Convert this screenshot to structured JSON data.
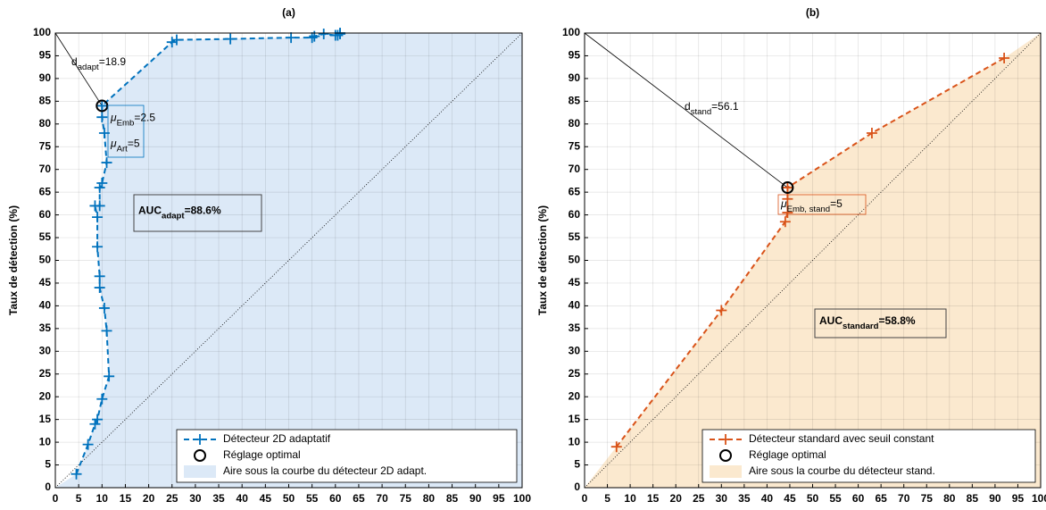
{
  "chart_data": [
    {
      "type": "line",
      "title": "(a)",
      "ylabel": "Taux de détection (%)",
      "xlim": [
        0,
        100
      ],
      "ylim": [
        0,
        100
      ],
      "xticks": [
        0,
        5,
        10,
        15,
        20,
        25,
        30,
        35,
        40,
        45,
        50,
        55,
        60,
        65,
        70,
        75,
        80,
        85,
        90,
        95,
        100
      ],
      "yticks": [
        0,
        5,
        10,
        15,
        20,
        25,
        30,
        35,
        40,
        45,
        50,
        55,
        60,
        65,
        70,
        75,
        80,
        85,
        90,
        95,
        100
      ],
      "grid": true,
      "legend": "lower right",
      "series": [
        {
          "name": "Détecteur 2D adaptatif",
          "color": "#0072bd",
          "x": [
            4.5,
            7,
            8.5,
            9,
            10,
            11.5,
            11,
            10.5,
            9.5,
            9.5,
            9,
            9,
            8.5,
            9.5,
            9.5,
            10,
            11,
            10.5,
            10,
            10,
            25,
            26,
            37.5,
            50.5,
            55,
            55.5,
            57.5,
            60,
            60.5,
            61,
            61
          ],
          "y": [
            3,
            9.5,
            14,
            15,
            19.5,
            24.5,
            34.5,
            39.5,
            44,
            46.5,
            53,
            59.5,
            62,
            62,
            66,
            67,
            71.5,
            78,
            81.5,
            84,
            98,
            98.5,
            98.7,
            99,
            99,
            99.3,
            99.8,
            99.5,
            99.5,
            99.8,
            100
          ]
        }
      ],
      "optimal": {
        "name": "Réglage optimal",
        "x": 10,
        "y": 84
      },
      "area": {
        "name": "Aire sous la courbe du détecteur 2D adapt.",
        "color": "#dce9f7"
      },
      "distance": {
        "label": "d",
        "sub": "adapt",
        "text": "=18.9"
      },
      "param_box": [
        {
          "label": "μ",
          "sub": "Emb",
          "text": "=2.5"
        },
        {
          "label": "μ",
          "sub": "Art",
          "text": "=5"
        }
      ],
      "auc": {
        "label": "AUC",
        "sub": "adapt",
        "text": "=88.6%"
      }
    },
    {
      "type": "line",
      "title": "(b)",
      "ylabel": "Taux de détection (%)",
      "xlim": [
        0,
        100
      ],
      "ylim": [
        0,
        100
      ],
      "xticks": [
        0,
        5,
        10,
        15,
        20,
        25,
        30,
        35,
        40,
        45,
        50,
        55,
        60,
        65,
        70,
        75,
        80,
        85,
        90,
        95,
        100
      ],
      "yticks": [
        0,
        5,
        10,
        15,
        20,
        25,
        30,
        35,
        40,
        45,
        50,
        55,
        60,
        65,
        70,
        75,
        80,
        85,
        90,
        95,
        100
      ],
      "grid": true,
      "legend": "lower right",
      "series": [
        {
          "name": "Détecteur standard avec seuil constant",
          "color": "#d95319",
          "x": [
            7,
            30,
            44,
            44.5,
            44.5,
            44.5,
            63,
            92
          ],
          "y": [
            9,
            39,
            58.5,
            60.5,
            63.5,
            66,
            78,
            94.5
          ]
        }
      ],
      "optimal": {
        "name": "Réglage optimal",
        "x": 44.5,
        "y": 66
      },
      "area": {
        "name": "Aire sous la courbe du détecteur stand.",
        "color": "#fbe9cf"
      },
      "distance": {
        "label": "d",
        "sub": "stand",
        "text": "=56.1"
      },
      "param_box": [
        {
          "label": "μ",
          "sub": "Emb, stand",
          "text": "=5"
        }
      ],
      "auc": {
        "label": "AUC",
        "sub": "standard",
        "text": "=58.8%"
      }
    }
  ]
}
